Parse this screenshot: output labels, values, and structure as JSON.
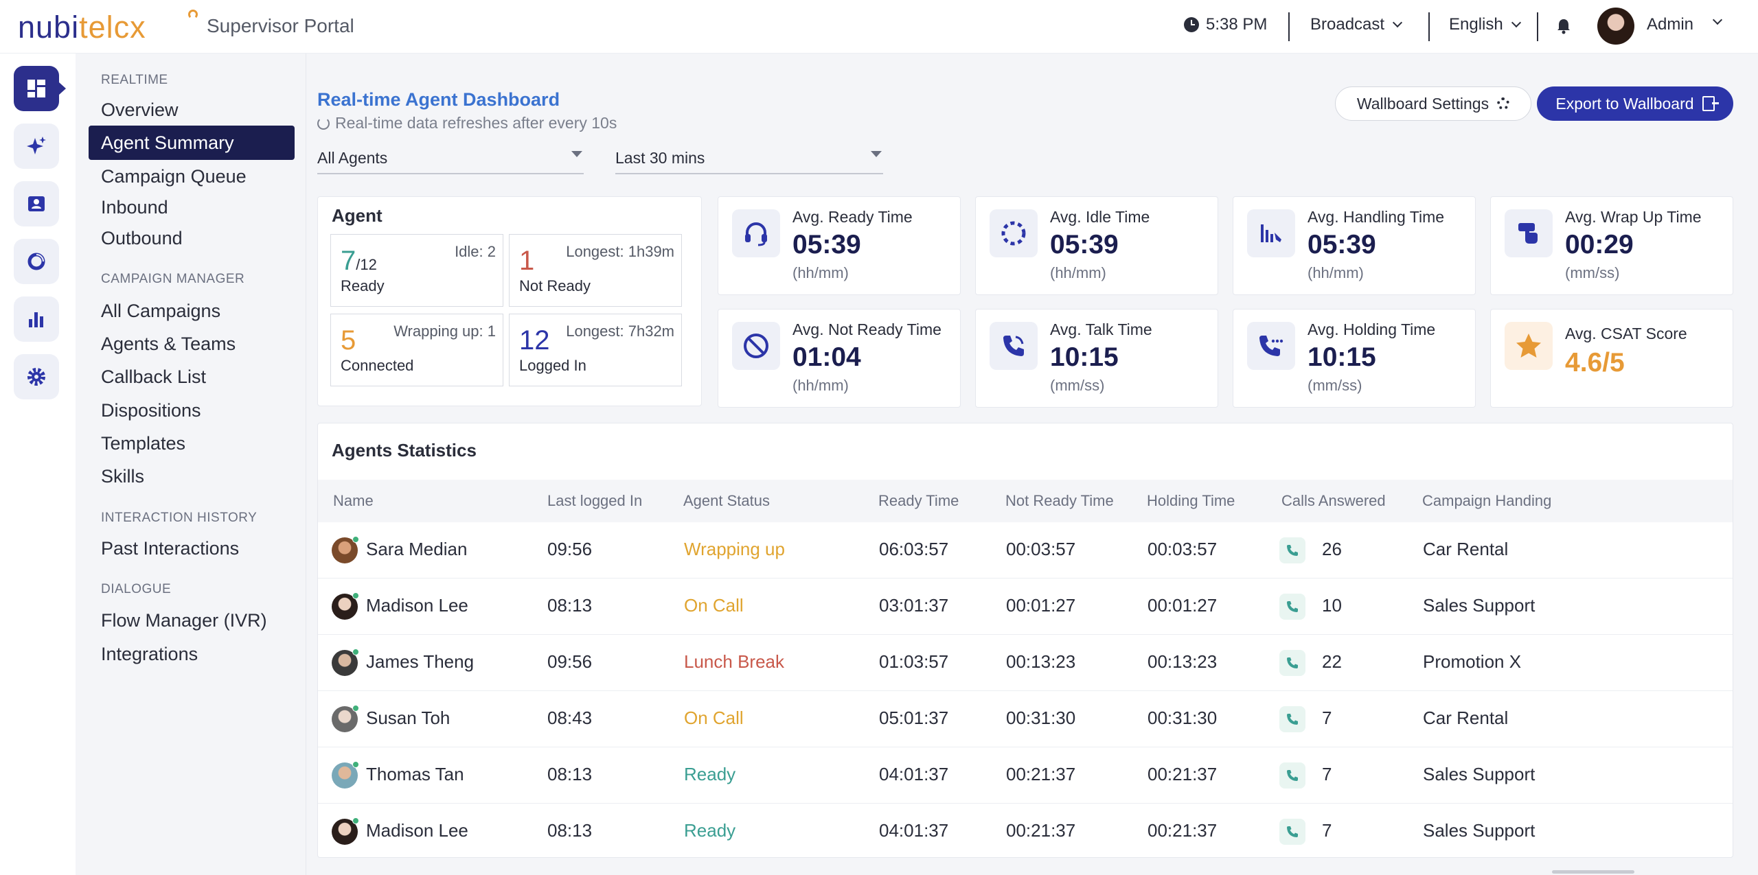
{
  "app": {
    "brand": "nubitelcx",
    "brand_parts": [
      "nubi",
      "tel",
      "cx"
    ],
    "portal_name": "Supervisor Portal"
  },
  "topbar": {
    "time": "5:38 PM",
    "broadcast_label": "Broadcast",
    "language_label": "English",
    "user_name": "Admin"
  },
  "rail": {
    "items": [
      "dashboard-icon",
      "sparkle-icon",
      "contact-card-icon",
      "donut-icon",
      "bar-chart-icon",
      "gear-icon"
    ],
    "active": 0
  },
  "menu": {
    "sections": [
      {
        "title": "REALTIME",
        "items": [
          "Overview",
          "Agent Summary",
          "Campaign Queue",
          "Inbound",
          "Outbound"
        ]
      },
      {
        "title": "CAMPAIGN MANAGER",
        "items": [
          "All Campaigns",
          "Agents & Teams",
          "Callback List",
          "Dispositions",
          "Templates",
          "Skills"
        ]
      },
      {
        "title": "INTERACTION HISTORY",
        "items": [
          "Past Interactions"
        ]
      },
      {
        "title": "DIALOGUE",
        "items": [
          "Flow Manager (IVR)",
          "Integrations"
        ]
      }
    ],
    "active_item": "Agent Summary"
  },
  "dashboard": {
    "title": "Real-time Agent Dashboard",
    "subtitle": "Real-time data refreshes after every 10s",
    "wallboard_settings_label": "Wallboard Settings",
    "export_label": "Export to Wallboard",
    "filter_agents": "All Agents",
    "filter_period": "Last 30 mins"
  },
  "agent_box": {
    "title": "Agent",
    "ready": {
      "value": "7",
      "total": "/12",
      "label": "Ready",
      "side": "Idle: 2"
    },
    "not_ready": {
      "value": "1",
      "label": "Not Ready",
      "side": "Longest: 1h39m"
    },
    "connected": {
      "value": "5",
      "label": "Connected",
      "side": "Wrapping up: 1"
    },
    "logged_in": {
      "value": "12",
      "label": "Logged In",
      "side": "Longest: 7h32m"
    }
  },
  "metrics": [
    {
      "label": "Avg. Ready Time",
      "value": "05:39",
      "unit": "(hh/mm)",
      "icon": "headset-icon"
    },
    {
      "label": "Avg. Idle Time",
      "value": "05:39",
      "unit": "(hh/mm)",
      "icon": "dotted-circle-icon"
    },
    {
      "label": "Avg. Handling Time",
      "value": "05:39",
      "unit": "(hh/mm)",
      "icon": "phone-handling-icon"
    },
    {
      "label": "Avg. Wrap Up Time",
      "value": "00:29",
      "unit": "(mm/ss)",
      "icon": "hand-pointer-icon"
    },
    {
      "label": "Avg. Not Ready Time",
      "value": "01:04",
      "unit": "(hh/mm)",
      "icon": "prohibited-icon"
    },
    {
      "label": "Avg. Talk Time",
      "value": "10:15",
      "unit": "(mm/ss)",
      "icon": "phone-talk-icon"
    },
    {
      "label": "Avg. Holding Time",
      "value": "10:15",
      "unit": "(mm/ss)",
      "icon": "phone-hold-icon"
    },
    {
      "label": "Avg. CSAT Score",
      "value": "4.6/5",
      "unit": "",
      "icon": "star-icon"
    }
  ],
  "stats": {
    "title": "Agents Statistics",
    "columns": [
      "Name",
      "Last logged In",
      "Agent Status",
      "Ready Time",
      "Not Ready Time",
      "Holding Time",
      "Calls Answered",
      "Campaign Handing"
    ],
    "rows": [
      {
        "name": "Sara Median",
        "last": "09:56",
        "status": "Wrapping up",
        "status_kind": "wrap",
        "ready": "06:03:57",
        "not_ready": "00:03:57",
        "holding": "00:03:57",
        "calls": "26",
        "campaign": "Car Rental"
      },
      {
        "name": "Madison Lee",
        "last": "08:13",
        "status": "On Call",
        "status_kind": "oncall",
        "ready": "03:01:37",
        "not_ready": "00:01:27",
        "holding": "00:01:27",
        "calls": "10",
        "campaign": "Sales Support"
      },
      {
        "name": "James Theng",
        "last": "09:56",
        "status": "Lunch Break",
        "status_kind": "lunch",
        "ready": "01:03:57",
        "not_ready": "00:13:23",
        "holding": "00:13:23",
        "calls": "22",
        "campaign": "Promotion X"
      },
      {
        "name": "Susan Toh",
        "last": "08:43",
        "status": "On Call",
        "status_kind": "oncall",
        "ready": "05:01:37",
        "not_ready": "00:31:30",
        "holding": "00:31:30",
        "calls": "7",
        "campaign": "Car Rental"
      },
      {
        "name": "Thomas Tan",
        "last": "08:13",
        "status": "Ready",
        "status_kind": "ready",
        "ready": "04:01:37",
        "not_ready": "00:21:37",
        "holding": "00:21:37",
        "calls": "7",
        "campaign": "Sales Support"
      },
      {
        "name": "Madison Lee",
        "last": "08:13",
        "status": "Ready",
        "status_kind": "ready",
        "ready": "04:01:37",
        "not_ready": "00:21:37",
        "holding": "00:21:37",
        "calls": "7",
        "campaign": "Sales Support"
      }
    ]
  },
  "colors": {
    "brand_navy": "#2c2f8c",
    "brand_orange": "#e79a36",
    "link_blue": "#3b73d0",
    "ready_teal": "#3a9e92",
    "warn_amber": "#e0a42f",
    "danger_red": "#c8584a"
  }
}
